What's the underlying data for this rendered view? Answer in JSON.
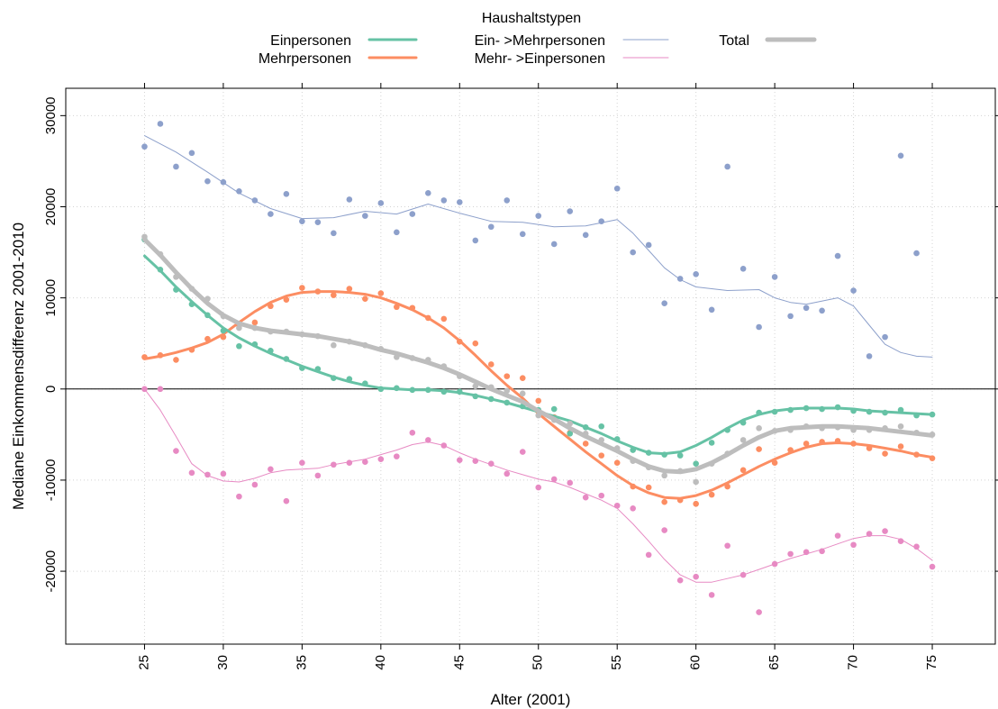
{
  "chart_data": {
    "type": "scatter",
    "xlabel": "Alter (2001)",
    "ylabel": "Mediane Einkommensdifferenz 2001-2010",
    "xlim": [
      20,
      79
    ],
    "ylim": [
      -28000,
      33000
    ],
    "x_ticks": [
      25,
      30,
      35,
      40,
      45,
      50,
      55,
      60,
      65,
      70,
      75
    ],
    "y_ticks": [
      -20000,
      -10000,
      0,
      10000,
      20000,
      30000
    ],
    "x_tick_labels": [
      "25",
      "30",
      "35",
      "40",
      "45",
      "50",
      "55",
      "60",
      "65",
      "70",
      "75"
    ],
    "y_tick_labels": [
      "-20000",
      "-10000",
      "0",
      "10000",
      "20000",
      "30000"
    ],
    "grid": true,
    "reference_line_y": 0,
    "legend": {
      "title": "Haushaltstypen",
      "placement": "top"
    },
    "series": [
      {
        "name": "Ein- >Mehrpersonen",
        "color": "#8da0cb",
        "line_style": "thin",
        "points": {
          "x": [
            25,
            26,
            27,
            28,
            29,
            30,
            31,
            32,
            33,
            34,
            35,
            36,
            37,
            38,
            39,
            40,
            41,
            42,
            43,
            44,
            45,
            46,
            47,
            48,
            49,
            50,
            51,
            52,
            53,
            54,
            55,
            56,
            57,
            58,
            59,
            60,
            61,
            62,
            63,
            64,
            65,
            66,
            67,
            68,
            69,
            70,
            71,
            72,
            73,
            74,
            75
          ],
          "y": [
            26600,
            29100,
            24400,
            25900,
            22800,
            22700,
            21700,
            20700,
            19200,
            21400,
            18400,
            18300,
            17100,
            20800,
            19000,
            20400,
            17200,
            19200,
            21500,
            20700,
            20500,
            16300,
            17800,
            20700,
            17000,
            19000,
            15900,
            19500,
            16900,
            18400,
            22000,
            15000,
            15800,
            9400,
            12100,
            12600,
            8700,
            24400,
            13200,
            6800,
            12300,
            8000,
            8900,
            8600,
            14600,
            10800,
            3600,
            5700,
            25600,
            14900,
            null
          ]
        },
        "smooth": {
          "x": [
            25,
            27,
            29,
            31,
            33,
            35,
            37,
            39,
            41,
            43,
            45,
            47,
            49,
            51,
            53,
            55,
            56,
            57,
            58,
            59,
            60,
            62,
            64,
            65,
            66,
            67,
            69,
            70,
            71,
            72,
            73,
            74,
            75
          ],
          "y": [
            27800,
            26000,
            23800,
            21500,
            19800,
            18700,
            18800,
            19500,
            19200,
            20300,
            19300,
            18400,
            18300,
            17800,
            17900,
            18600,
            17100,
            15200,
            13300,
            12000,
            11200,
            10800,
            10900,
            10000,
            9500,
            9300,
            10000,
            9100,
            7000,
            4900,
            4000,
            3600,
            3500
          ]
        }
      },
      {
        "name": "Mehr- >Einpersonen",
        "color": "#e78ac3",
        "line_style": "thin",
        "points": {
          "x": [
            25,
            26,
            27,
            28,
            29,
            30,
            31,
            32,
            33,
            34,
            35,
            36,
            37,
            38,
            39,
            40,
            41,
            42,
            43,
            44,
            45,
            46,
            47,
            48,
            49,
            50,
            51,
            52,
            53,
            54,
            55,
            56,
            57,
            58,
            59,
            60,
            61,
            62,
            63,
            64,
            65,
            66,
            67,
            68,
            69,
            70,
            71,
            72,
            73,
            74,
            75
          ],
          "y": [
            0,
            0,
            -6800,
            -9200,
            -9400,
            -9300,
            -11800,
            -10500,
            -8800,
            -12300,
            -8100,
            -9500,
            -8300,
            -8100,
            -8000,
            -7700,
            -7400,
            -4800,
            -5600,
            -6200,
            -7800,
            -7900,
            -8200,
            -9300,
            -6900,
            -10800,
            -9900,
            -10300,
            -11900,
            -11700,
            -12800,
            -13100,
            -18200,
            -15500,
            -21000,
            -20600,
            -22600,
            -17200,
            -20400,
            -24500,
            -19200,
            -18100,
            -17900,
            -17800,
            -16100,
            -17100,
            -15900,
            -15600,
            -16700,
            -17300,
            -19500
          ]
        },
        "smooth": {
          "x": [
            25,
            26,
            27,
            28,
            29,
            30,
            31,
            32,
            33,
            34,
            35,
            36,
            37,
            38,
            39,
            40,
            41,
            42,
            43,
            44,
            45,
            46,
            47,
            48,
            49,
            50,
            51,
            52,
            53,
            54,
            55,
            56,
            57,
            58,
            59,
            60,
            61,
            62,
            63,
            64,
            65,
            66,
            67,
            68,
            69,
            70,
            71,
            72,
            73,
            74,
            75
          ],
          "y": [
            0,
            -2300,
            -5200,
            -8200,
            -9500,
            -10100,
            -10200,
            -9800,
            -9200,
            -8900,
            -8800,
            -8700,
            -8300,
            -8000,
            -7700,
            -7200,
            -6700,
            -6100,
            -5800,
            -6200,
            -7000,
            -7700,
            -8300,
            -8900,
            -9400,
            -9900,
            -10200,
            -10800,
            -11500,
            -12200,
            -13100,
            -14800,
            -16700,
            -18700,
            -20400,
            -21200,
            -21200,
            -20800,
            -20400,
            -19800,
            -19200,
            -18600,
            -18100,
            -17600,
            -17000,
            -16400,
            -16100,
            -16100,
            -16500,
            -17500,
            -18800
          ]
        }
      },
      {
        "name": "Mehrpersonen",
        "color": "#fc8d62",
        "line_style": "thick",
        "points": {
          "x": [
            25,
            26,
            27,
            28,
            29,
            30,
            31,
            32,
            33,
            34,
            35,
            36,
            37,
            38,
            39,
            40,
            41,
            42,
            43,
            44,
            45,
            46,
            47,
            48,
            49,
            50,
            51,
            52,
            53,
            54,
            55,
            56,
            57,
            58,
            59,
            60,
            61,
            62,
            63,
            64,
            65,
            66,
            67,
            68,
            69,
            70,
            71,
            72,
            73,
            74,
            75
          ],
          "y": [
            3500,
            3700,
            3200,
            4300,
            5500,
            5700,
            7000,
            7300,
            9100,
            9800,
            11100,
            10700,
            10300,
            11000,
            9900,
            10500,
            9000,
            8900,
            7800,
            7700,
            5200,
            5000,
            2700,
            1400,
            1200,
            -1300,
            -3100,
            -4800,
            -6000,
            -7300,
            -8100,
            -10700,
            -10800,
            -12400,
            -12200,
            -12600,
            -11600,
            -10700,
            -8900,
            -6600,
            -8100,
            -6700,
            -6000,
            -5800,
            -5700,
            -6000,
            -6500,
            -7100,
            -6300,
            -7200,
            -7600
          ]
        },
        "smooth": {
          "x": [
            25,
            26,
            27,
            28,
            29,
            30,
            31,
            32,
            33,
            34,
            35,
            36,
            37,
            38,
            39,
            40,
            41,
            42,
            43,
            44,
            45,
            46,
            47,
            48,
            49,
            50,
            51,
            52,
            53,
            54,
            55,
            56,
            57,
            58,
            59,
            60,
            61,
            62,
            63,
            64,
            65,
            66,
            67,
            68,
            69,
            70,
            71,
            72,
            73,
            74,
            75
          ],
          "y": [
            3300,
            3600,
            4000,
            4500,
            5100,
            6000,
            7300,
            8500,
            9500,
            10200,
            10600,
            10700,
            10700,
            10600,
            10400,
            10000,
            9400,
            8700,
            7800,
            6700,
            5300,
            3700,
            2000,
            400,
            -1000,
            -2700,
            -4100,
            -5500,
            -6900,
            -8200,
            -9500,
            -10600,
            -11400,
            -11900,
            -12000,
            -11700,
            -11100,
            -10300,
            -9400,
            -8500,
            -7700,
            -7000,
            -6400,
            -6000,
            -5900,
            -6000,
            -6200,
            -6500,
            -6800,
            -7200,
            -7500
          ]
        }
      },
      {
        "name": "Einpersonen",
        "color": "#66c2a5",
        "line_style": "thick",
        "points": {
          "x": [
            25,
            26,
            27,
            28,
            29,
            30,
            31,
            32,
            33,
            34,
            35,
            36,
            37,
            38,
            39,
            40,
            41,
            42,
            43,
            44,
            45,
            46,
            47,
            48,
            49,
            50,
            51,
            52,
            53,
            54,
            55,
            56,
            57,
            58,
            59,
            60,
            61,
            62,
            63,
            64,
            65,
            66,
            67,
            68,
            69,
            70,
            71,
            72,
            73,
            74,
            75
          ],
          "y": [
            16400,
            13100,
            10900,
            9300,
            8100,
            6400,
            4700,
            4900,
            4200,
            3300,
            2300,
            2200,
            1200,
            1100,
            600,
            0,
            100,
            -100,
            -100,
            -300,
            -300,
            -800,
            -1100,
            -1500,
            -1900,
            -2300,
            -2200,
            -4900,
            -4200,
            -4100,
            -5500,
            -6700,
            -7000,
            -7200,
            -7300,
            -8200,
            -5900,
            -4500,
            -3700,
            -2600,
            -2500,
            -2300,
            -2100,
            -2200,
            -2000,
            -2400,
            -2500,
            -2600,
            -2300,
            -2900,
            -2800
          ]
        },
        "smooth": {
          "x": [
            25,
            26,
            27,
            28,
            29,
            30,
            31,
            32,
            33,
            34,
            35,
            36,
            37,
            38,
            39,
            40,
            41,
            42,
            43,
            44,
            45,
            46,
            47,
            48,
            49,
            50,
            51,
            52,
            53,
            54,
            55,
            56,
            57,
            58,
            59,
            60,
            61,
            62,
            63,
            64,
            65,
            66,
            67,
            68,
            69,
            70,
            71,
            72,
            73,
            74,
            75
          ],
          "y": [
            14600,
            13000,
            11200,
            9600,
            8100,
            6700,
            5600,
            4700,
            3900,
            3200,
            2500,
            1900,
            1300,
            800,
            400,
            100,
            0,
            -100,
            -100,
            -200,
            -400,
            -700,
            -1100,
            -1500,
            -2000,
            -2500,
            -3000,
            -3500,
            -4200,
            -4900,
            -5700,
            -6400,
            -7000,
            -7100,
            -6900,
            -6200,
            -5300,
            -4300,
            -3400,
            -2800,
            -2400,
            -2200,
            -2100,
            -2100,
            -2100,
            -2200,
            -2400,
            -2500,
            -2600,
            -2700,
            -2800
          ]
        }
      },
      {
        "name": "Total",
        "color": "#bdbdbd",
        "line_style": "thickest",
        "points": {
          "x": [
            25,
            26,
            27,
            28,
            29,
            30,
            31,
            32,
            33,
            34,
            35,
            36,
            37,
            38,
            39,
            40,
            41,
            42,
            43,
            44,
            45,
            46,
            47,
            48,
            49,
            50,
            51,
            52,
            53,
            54,
            55,
            56,
            57,
            58,
            59,
            60,
            61,
            62,
            63,
            64,
            65,
            66,
            67,
            68,
            69,
            70,
            71,
            72,
            73,
            74,
            75
          ],
          "y": [
            16700,
            14800,
            12300,
            11000,
            9900,
            8000,
            6700,
            6700,
            6300,
            6300,
            6000,
            5800,
            4800,
            5200,
            4800,
            4400,
            3500,
            3400,
            3200,
            2500,
            1400,
            300,
            200,
            -200,
            -500,
            -2900,
            -3400,
            -3800,
            -4900,
            -5600,
            -6500,
            -7900,
            -8600,
            -9500,
            -9000,
            -10200,
            -8200,
            -7100,
            -5600,
            -4300,
            -4600,
            -4500,
            -4100,
            -4300,
            -4200,
            -4500,
            -4500,
            -4300,
            -4100,
            -4800,
            -5000
          ]
        },
        "smooth": {
          "x": [
            25,
            26,
            27,
            28,
            29,
            30,
            31,
            32,
            33,
            34,
            35,
            36,
            37,
            38,
            39,
            40,
            41,
            42,
            43,
            44,
            45,
            46,
            47,
            48,
            49,
            50,
            51,
            52,
            53,
            54,
            55,
            56,
            57,
            58,
            59,
            60,
            61,
            62,
            63,
            64,
            65,
            66,
            67,
            68,
            69,
            70,
            71,
            72,
            73,
            74,
            75
          ],
          "y": [
            16400,
            14700,
            12800,
            11000,
            9400,
            8100,
            7200,
            6700,
            6400,
            6200,
            6000,
            5800,
            5500,
            5200,
            4800,
            4300,
            3900,
            3400,
            2900,
            2300,
            1600,
            800,
            0,
            -700,
            -1400,
            -2400,
            -3300,
            -4300,
            -5200,
            -6000,
            -6800,
            -7700,
            -8500,
            -9000,
            -9100,
            -8800,
            -8100,
            -7200,
            -6200,
            -5300,
            -4600,
            -4300,
            -4200,
            -4100,
            -4100,
            -4200,
            -4300,
            -4500,
            -4700,
            -4900,
            -5100
          ]
        }
      }
    ]
  }
}
